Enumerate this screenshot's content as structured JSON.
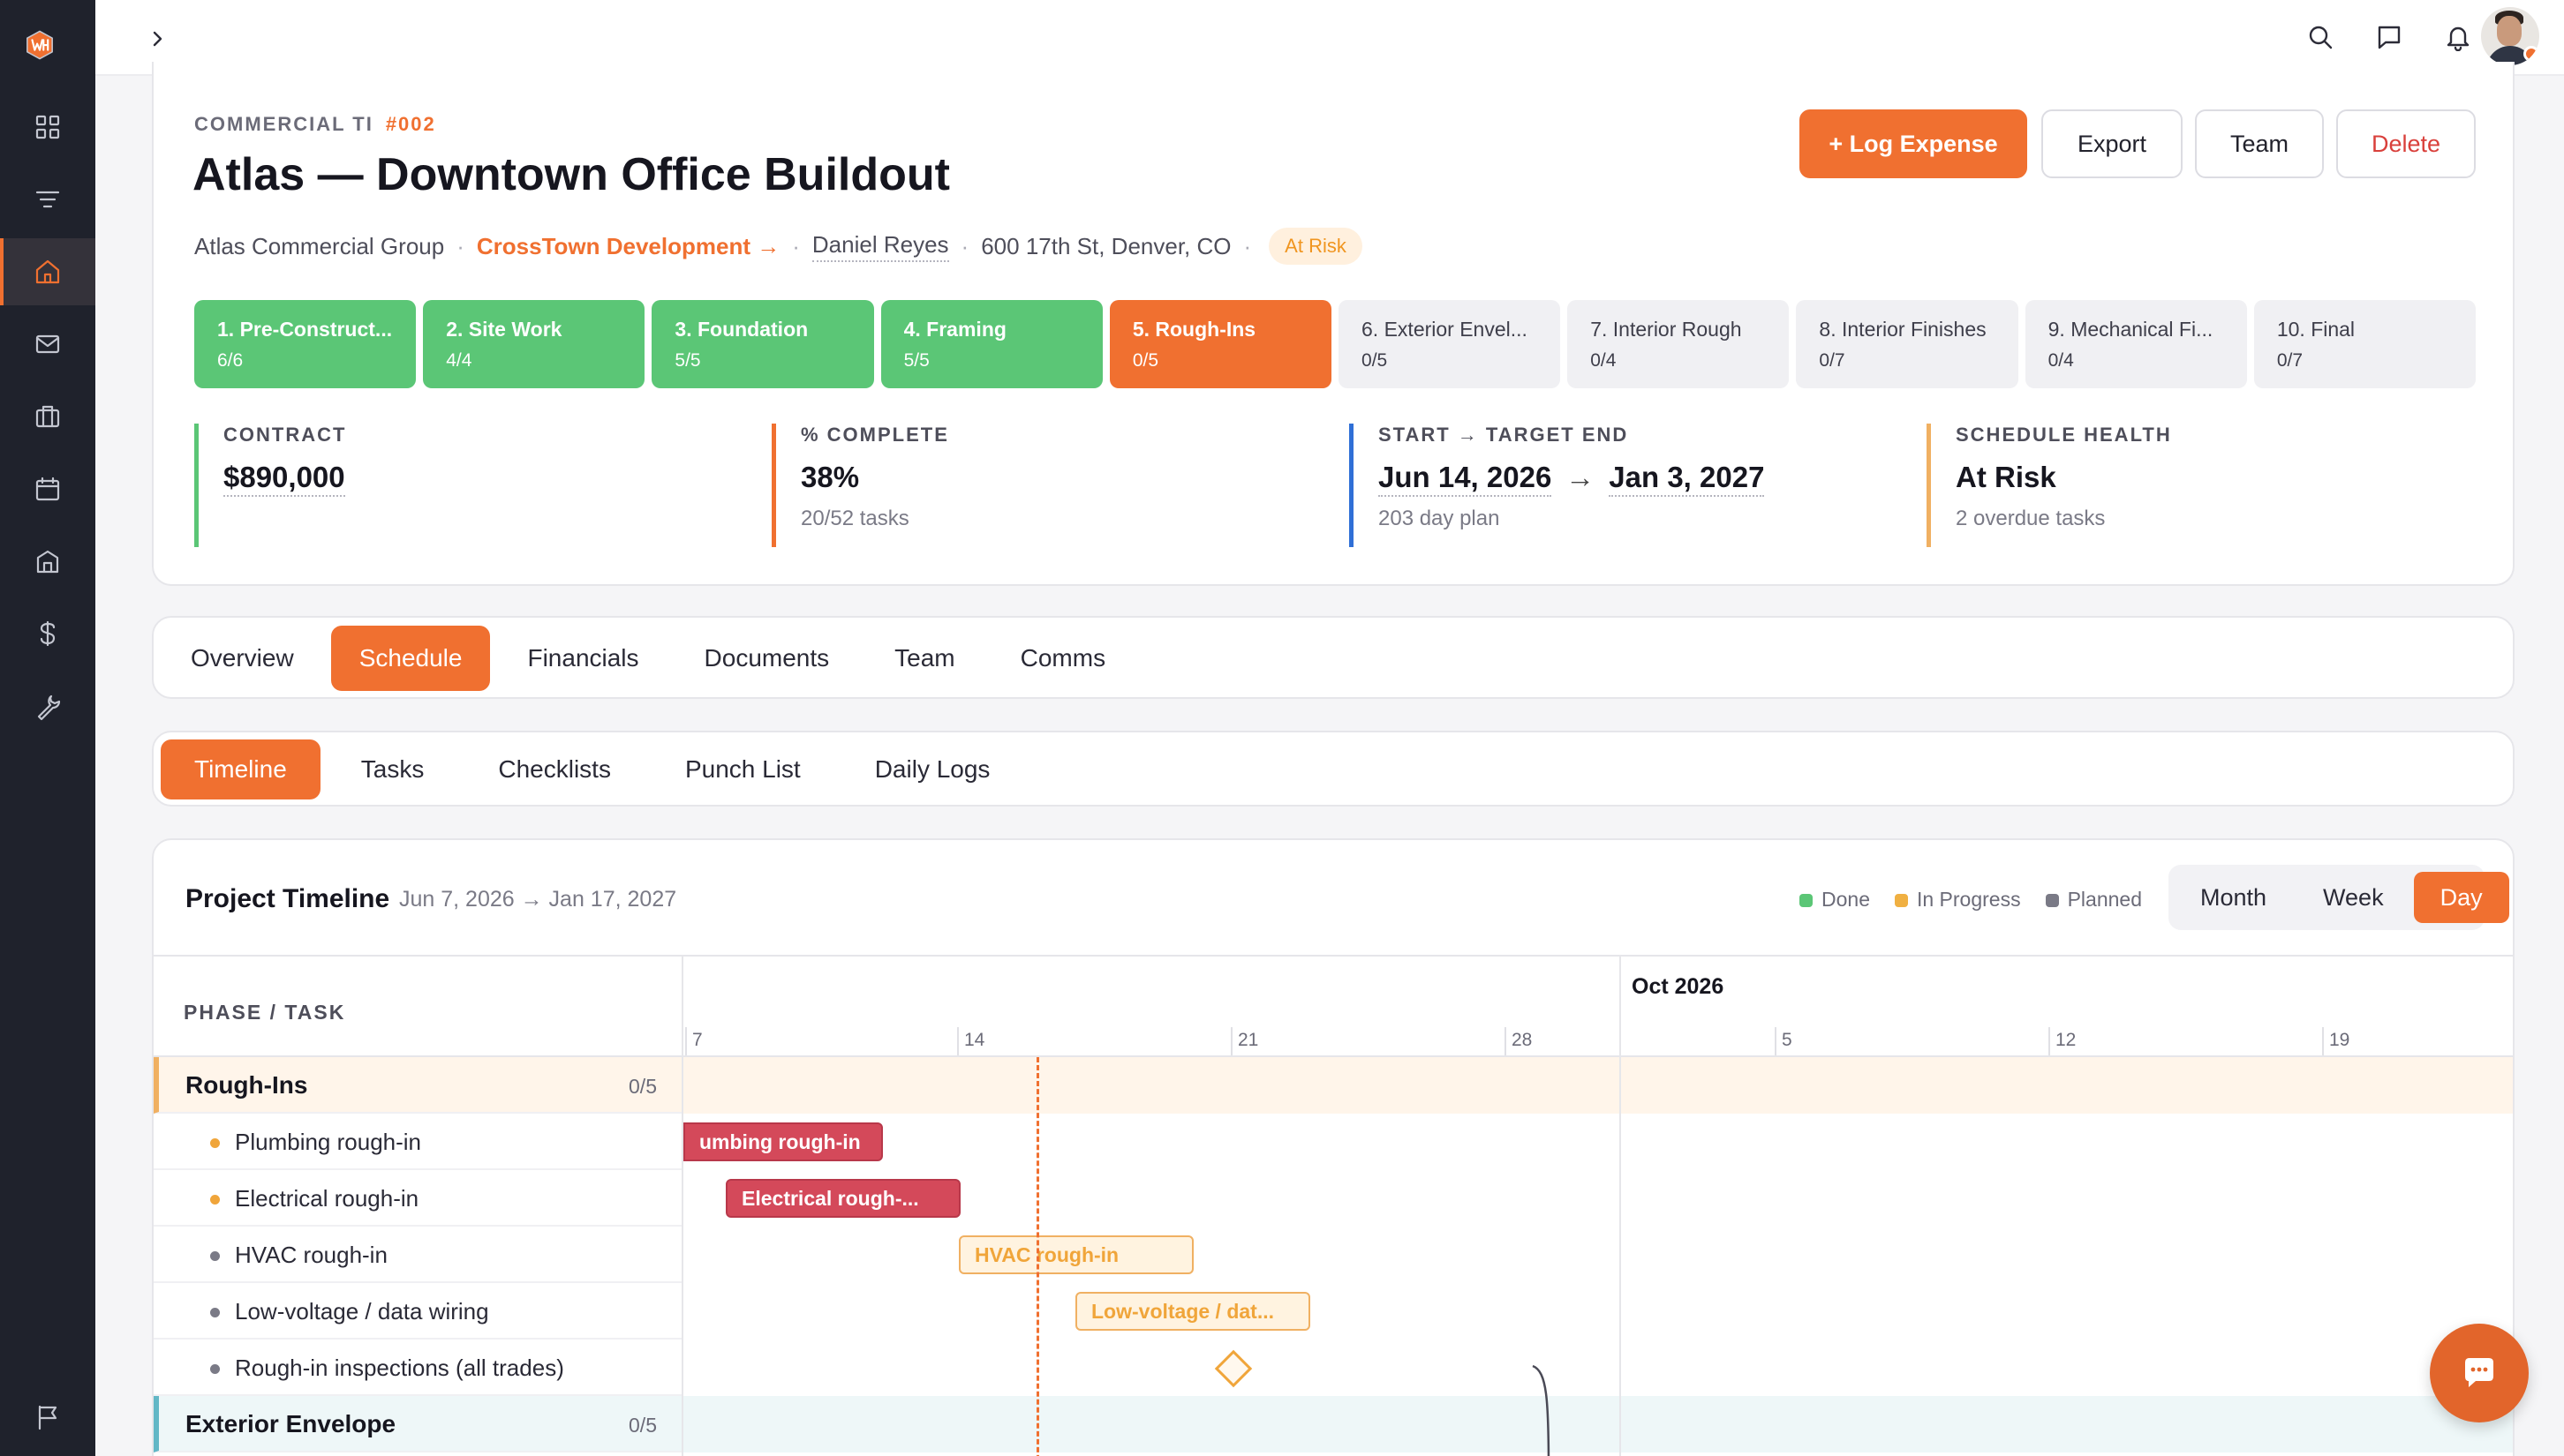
{
  "brand": {
    "accent": "#f07030",
    "done": "#5bc676",
    "overdue": "#d4495a",
    "planned": "#f0a53a"
  },
  "nav": {
    "items": [
      "grid-icon",
      "filter-icon",
      "home-icon",
      "mail-icon",
      "briefcase-icon",
      "calendar-icon",
      "building-icon",
      "dollar-icon",
      "wrench-icon",
      "flag-icon"
    ],
    "active": "home-icon"
  },
  "topbar": {
    "icons": [
      "chevron-right-icon",
      "search-icon",
      "chat-icon",
      "bell-icon"
    ]
  },
  "project": {
    "kicker": "COMMERCIAL TI",
    "number": "#002",
    "title": "Atlas — Downtown Office Buildout",
    "client": "Atlas Commercial Group",
    "developer": "CrossTown Development →",
    "manager": "Daniel Reyes",
    "address": "600 17th St, Denver, CO",
    "status": "At Risk",
    "separator": "·",
    "buttons": {
      "log_expense": "+ Log Expense",
      "export": "Export",
      "team": "Team",
      "delete": "Delete"
    }
  },
  "stages": [
    {
      "name": "1. Pre-Construct...",
      "count": "6/6",
      "state": "done"
    },
    {
      "name": "2. Site Work",
      "count": "4/4",
      "state": "done"
    },
    {
      "name": "3. Foundation",
      "count": "5/5",
      "state": "done"
    },
    {
      "name": "4. Framing",
      "count": "5/5",
      "state": "done"
    },
    {
      "name": "5. Rough-Ins",
      "count": "0/5",
      "state": "current"
    },
    {
      "name": "6. Exterior Envel...",
      "count": "0/5",
      "state": "todo"
    },
    {
      "name": "7. Interior Rough",
      "count": "0/4",
      "state": "todo"
    },
    {
      "name": "8. Interior Finishes",
      "count": "0/7",
      "state": "todo"
    },
    {
      "name": "9. Mechanical Fi...",
      "count": "0/4",
      "state": "todo"
    },
    {
      "name": "10. Final",
      "count": "0/7",
      "state": "todo"
    }
  ],
  "stats": {
    "contract": {
      "label": "CONTRACT",
      "value": "$890,000",
      "color": "#5bc676"
    },
    "complete": {
      "label": "% COMPLETE",
      "value": "38%",
      "sub": "20/52 tasks",
      "color": "#f07030"
    },
    "dates": {
      "label": "START → TARGET END",
      "start": "Jun 14, 2026",
      "arrow": "→",
      "end": "Jan 3, 2027",
      "sub": "203 day plan",
      "color": "#2f6fd6"
    },
    "health": {
      "label": "SCHEDULE HEALTH",
      "value": "At Risk",
      "sub": "2 overdue tasks",
      "color": "#f0b062"
    }
  },
  "tabs": [
    "Overview",
    "Schedule",
    "Financials",
    "Documents",
    "Team",
    "Comms"
  ],
  "active_tab": "Schedule",
  "subtabs": [
    "Timeline",
    "Tasks",
    "Checklists",
    "Punch List",
    "Daily Logs"
  ],
  "active_subtab": "Timeline",
  "timeline": {
    "title": "Project Timeline",
    "range": "Jun 7, 2026 → Jan 17, 2027",
    "legend": [
      "Done",
      "In Progress",
      "Planned"
    ],
    "zoom": [
      "Month",
      "Week",
      "Day"
    ],
    "zoom_active": "Day",
    "column_header": "PHASE / TASK",
    "month": "Oct 2026",
    "ticks": [
      "7",
      "14",
      "21",
      "28",
      "5",
      "12",
      "19"
    ],
    "rows": [
      {
        "kind": "phase",
        "name": "Rough-Ins",
        "count": "0/5"
      },
      {
        "kind": "task",
        "name": "Plumbing rough-in",
        "status": "overdue",
        "bar": "umbing rough-in"
      },
      {
        "kind": "task",
        "name": "Electrical rough-in",
        "status": "overdue",
        "bar": "Electrical rough-..."
      },
      {
        "kind": "task",
        "name": "HVAC rough-in",
        "status": "planned",
        "bar": "HVAC rough-in"
      },
      {
        "kind": "task",
        "name": "Low-voltage / data wiring",
        "status": "planned",
        "bar": "Low-voltage / dat..."
      },
      {
        "kind": "task",
        "name": "Rough-in inspections (all trades)",
        "status": "milestone",
        "bar": ""
      },
      {
        "kind": "phase",
        "name": "Exterior Envelope",
        "count": "0/5"
      }
    ]
  }
}
